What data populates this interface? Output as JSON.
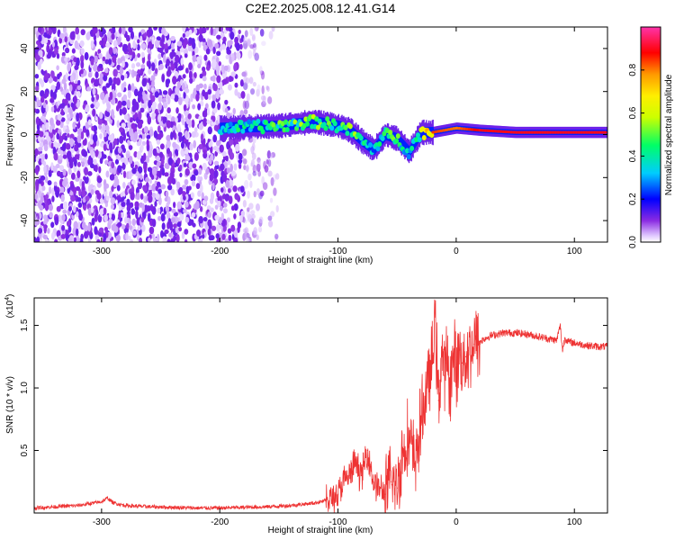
{
  "title": "C2E2.2025.008.12.41.G14",
  "chart_data": [
    {
      "type": "heatmap",
      "xlabel": "Height of straight line (km)",
      "ylabel": "Frequency (Hz)",
      "xlim": [
        -357,
        128
      ],
      "ylim": [
        -50,
        50
      ],
      "xticks": [
        -300,
        -200,
        -100,
        0,
        100
      ],
      "yticks": [
        -40,
        -20,
        0,
        20,
        40
      ],
      "xtick_labels": [
        "-300",
        "-200",
        "-100",
        "0",
        "100"
      ],
      "ytick_labels": [
        "-40",
        "-20",
        "0",
        "20",
        "40"
      ],
      "colorbar": {
        "label": "Normalized spectral amplitude",
        "range": [
          0,
          1
        ],
        "ticks": [
          0.0,
          0.2,
          0.4,
          0.6,
          0.8
        ],
        "tick_labels": [
          "0.0",
          "0.2",
          "0.4",
          "0.6",
          "0.8"
        ]
      },
      "ridge": {
        "description_points_x": [
          -200,
          -150,
          -120,
          -100,
          -90,
          -80,
          -70,
          -60,
          -50,
          -40,
          -30,
          -20,
          0,
          20,
          50,
          90,
          128
        ],
        "freq_hz": [
          3,
          4,
          6,
          4,
          2,
          -3,
          -7,
          0,
          -2,
          -8,
          1,
          1,
          3,
          2,
          1,
          1,
          1
        ],
        "amplitude": [
          0.4,
          0.5,
          0.55,
          0.5,
          0.6,
          0.45,
          0.35,
          0.55,
          0.5,
          0.35,
          0.6,
          0.85,
          0.8,
          0.9,
          0.9,
          0.9,
          0.9
        ]
      },
      "noise_region_x": [
        -357,
        -150
      ]
    },
    {
      "type": "line",
      "xlabel": "Height of straight line (km)",
      "ylabel": "SNR (10 * v/v)",
      "y_multiplier_label": "(x10",
      "y_multiplier_exp": "4",
      "y_multiplier_close": ")",
      "xlim": [
        -357,
        128
      ],
      "ylim": [
        0,
        1.72
      ],
      "xticks": [
        -300,
        -200,
        -100,
        0,
        100
      ],
      "yticks": [
        0.5,
        1.0,
        1.5
      ],
      "xtick_labels": [
        "-300",
        "-200",
        "-100",
        "0",
        "100"
      ],
      "ytick_labels": [
        "0.5",
        "1.0",
        "1.5"
      ],
      "series": [
        {
          "color": "#ee3333",
          "x": [
            -357,
            -340,
            -320,
            -300,
            -295,
            -290,
            -280,
            -260,
            -240,
            -220,
            -200,
            -180,
            -160,
            -140,
            -120,
            -110,
            -100,
            -95,
            -90,
            -85,
            -80,
            -75,
            -70,
            -65,
            -60,
            -55,
            -50,
            -45,
            -40,
            -35,
            -30,
            -25,
            -20,
            -18,
            -15,
            -12,
            -10,
            -8,
            -5,
            -2,
            0,
            2,
            5,
            8,
            10,
            15,
            20,
            25,
            30,
            40,
            50,
            60,
            70,
            80,
            85,
            88,
            90,
            92,
            95,
            100,
            110,
            120,
            128
          ],
          "y": [
            0.04,
            0.05,
            0.06,
            0.09,
            0.12,
            0.08,
            0.06,
            0.05,
            0.045,
            0.04,
            0.04,
            0.045,
            0.05,
            0.06,
            0.08,
            0.1,
            0.15,
            0.25,
            0.3,
            0.4,
            0.3,
            0.5,
            0.25,
            0.2,
            0.15,
            0.25,
            0.2,
            0.5,
            0.6,
            0.4,
            0.7,
            1.0,
            1.2,
            1.6,
            0.9,
            1.3,
            1.1,
            1.2,
            1.05,
            1.25,
            1.15,
            1.3,
            1.2,
            1.25,
            1.3,
            1.35,
            1.37,
            1.4,
            1.42,
            1.44,
            1.44,
            1.43,
            1.41,
            1.39,
            1.38,
            1.5,
            1.3,
            1.4,
            1.37,
            1.36,
            1.34,
            1.33,
            1.33
          ]
        }
      ]
    }
  ]
}
